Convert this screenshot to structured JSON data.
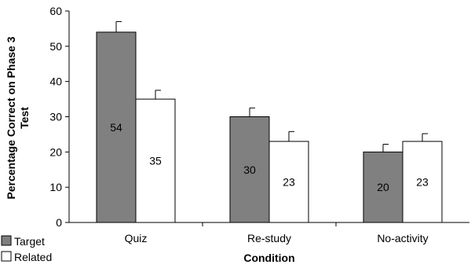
{
  "chart_data": {
    "type": "bar",
    "categories": [
      "Quiz",
      "Re-study",
      "No-activity"
    ],
    "series": [
      {
        "name": "Target",
        "values": [
          54,
          30,
          20
        ],
        "error": [
          3,
          2.5,
          2.2
        ],
        "color": "#808080"
      },
      {
        "name": "Related",
        "values": [
          35,
          23,
          23
        ],
        "error": [
          2.5,
          2.8,
          2.2
        ],
        "color": "#ffffff"
      }
    ],
    "data_labels": [
      [
        "54",
        "30",
        "20"
      ],
      [
        "35",
        "23",
        "23"
      ]
    ],
    "xlabel": "Condition",
    "ylabel_lines": [
      "Percentage Correct on Phase 3",
      "Test"
    ],
    "ylim": [
      0,
      60
    ],
    "yticks": [
      0,
      10,
      20,
      30,
      40,
      50,
      60
    ],
    "grid": false,
    "legend_position": "bottom-left"
  }
}
